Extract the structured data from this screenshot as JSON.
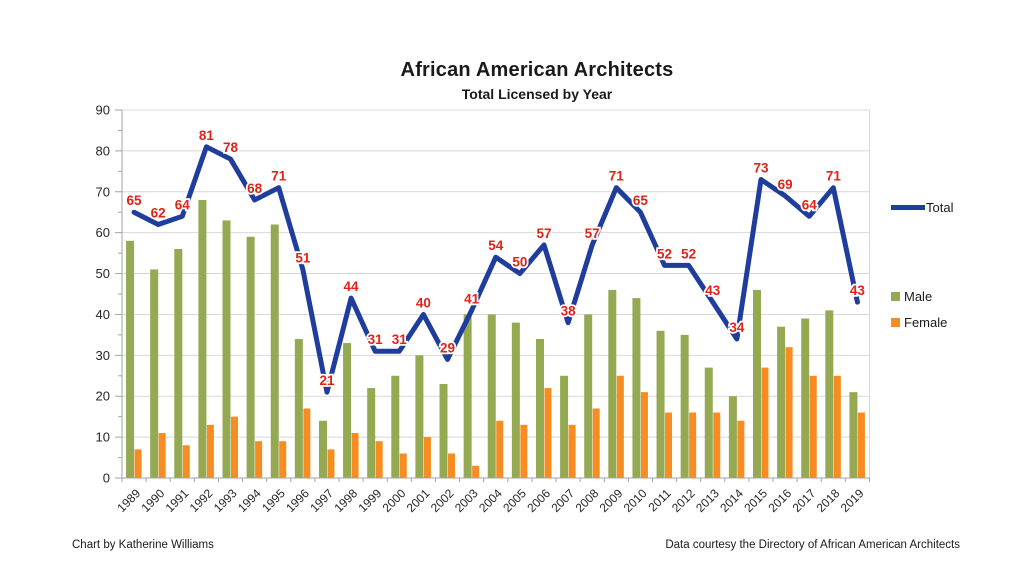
{
  "header": {
    "title": "African American Architects",
    "subtitle": "Total Licensed by Year"
  },
  "footer": {
    "left": "Chart by Katherine Williams",
    "right": "Data courtesy the Directory of African American Architects"
  },
  "legend": {
    "position": "right",
    "items": [
      {
        "label": "Total",
        "swatch": "line",
        "color": "#1F3D9C"
      },
      {
        "label": "Male",
        "swatch": "square",
        "color": "#94A952"
      },
      {
        "label": "Female",
        "swatch": "square",
        "color": "#F68C22"
      }
    ]
  },
  "chart_data": {
    "type": "combo",
    "title": "African American Architects",
    "subtitle": "Total Licensed by Year",
    "categories": [
      "1989",
      "1990",
      "1991",
      "1992",
      "1993",
      "1994",
      "1995",
      "1996",
      "1997",
      "1998",
      "1999",
      "2000",
      "2001",
      "2002",
      "2003",
      "2004",
      "2005",
      "2006",
      "2007",
      "2008",
      "2009",
      "2010",
      "2011",
      "2012",
      "2013",
      "2014",
      "2015",
      "2016",
      "2017",
      "2018",
      "2019"
    ],
    "series": [
      {
        "name": "Total",
        "type": "line",
        "color": "#1F3D9C",
        "values": [
          65,
          62,
          64,
          81,
          78,
          68,
          71,
          51,
          21,
          44,
          31,
          31,
          40,
          29,
          41,
          54,
          50,
          57,
          38,
          57,
          71,
          65,
          52,
          52,
          43,
          34,
          73,
          69,
          64,
          71,
          43
        ],
        "data_labels": {
          "visible": true,
          "color": "#E02318"
        }
      },
      {
        "name": "Male",
        "type": "bar",
        "color": "#94A952",
        "values": [
          58,
          51,
          56,
          68,
          63,
          59,
          62,
          34,
          14,
          33,
          22,
          25,
          30,
          23,
          40,
          40,
          38,
          34,
          25,
          40,
          46,
          44,
          36,
          35,
          27,
          20,
          46,
          37,
          39,
          41,
          21
        ]
      },
      {
        "name": "Female",
        "type": "bar",
        "color": "#F68C22",
        "values": [
          7,
          11,
          8,
          13,
          15,
          9,
          9,
          17,
          7,
          11,
          9,
          6,
          10,
          6,
          3,
          14,
          13,
          22,
          13,
          17,
          25,
          21,
          16,
          16,
          16,
          14,
          27,
          32,
          25,
          25,
          16
        ]
      }
    ],
    "xlabel": "",
    "ylabel": "",
    "ylim": [
      0,
      90
    ],
    "ytick_step": 10,
    "ytick_minor_step": 5,
    "grid": true,
    "grid_color": "#D8D8D8",
    "axis_color": "#A3A3A3",
    "tick_label_color": "#262626",
    "legend_position": "right"
  }
}
